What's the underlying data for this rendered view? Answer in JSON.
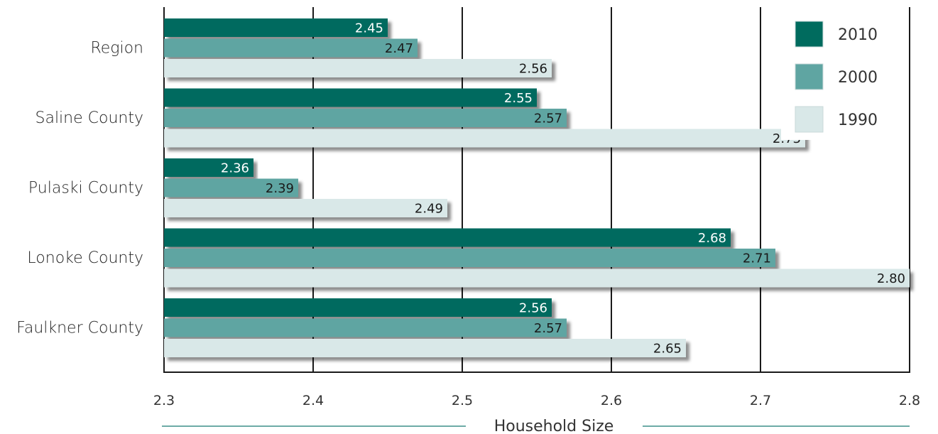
{
  "chart_data": {
    "type": "bar",
    "orientation": "horizontal",
    "categories": [
      "Region",
      "Saline County",
      "Pulaski County",
      "Lonoke County",
      "Faulkner County"
    ],
    "series": [
      {
        "name": "2010",
        "values": [
          2.45,
          2.55,
          2.36,
          2.68,
          2.56
        ],
        "labels": [
          "2.45",
          "2.55",
          "2.36",
          "2.68",
          "2.56"
        ],
        "color": "#006b5e",
        "label_color": "#ffffff"
      },
      {
        "name": "2000",
        "values": [
          2.47,
          2.57,
          2.39,
          2.71,
          2.57
        ],
        "labels": [
          "2.47",
          "2.57",
          "2.39",
          "2.71",
          "2.57"
        ],
        "color": "#5fa5a2",
        "label_color": "#1a1a1a"
      },
      {
        "name": "1990",
        "values": [
          2.56,
          2.73,
          2.49,
          2.8,
          2.65
        ],
        "labels": [
          "2.56",
          "2.73",
          "2.49",
          "2.80",
          "2.65"
        ],
        "color": "#d9e8e8",
        "label_color": "#1a1a1a"
      }
    ],
    "xlim": [
      2.3,
      2.8
    ],
    "xticks": [
      2.3,
      2.4,
      2.5,
      2.6,
      2.7,
      2.8
    ],
    "xtick_labels": [
      "2.3",
      "2.4",
      "2.5",
      "2.6",
      "2.7",
      "2.8"
    ],
    "xlabel": "Household Size",
    "grid": "vertical",
    "legend_position": "top-right"
  }
}
